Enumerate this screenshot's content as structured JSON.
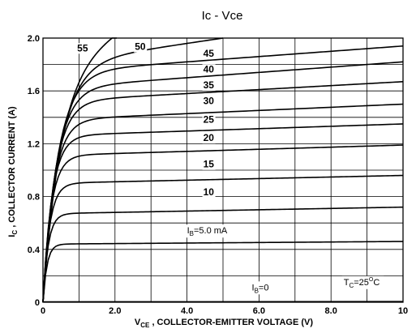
{
  "chart_data": {
    "type": "line",
    "title": "Ic - Vce",
    "xlabel": {
      "sym": "V",
      "sub": "CE",
      "text": " , COLLECTOR-EMITTER VOLTAGE (V)"
    },
    "ylabel": {
      "sym": "I",
      "sub": "C",
      "text": " , COLLECTOR CURRENT (A)"
    },
    "xlim": [
      0,
      10
    ],
    "ylim": [
      0,
      2.0
    ],
    "x_ticks": [
      {
        "value": 0,
        "label": "0"
      },
      {
        "value": 2,
        "label": "2.0"
      },
      {
        "value": 4,
        "label": "4.0"
      },
      {
        "value": 6,
        "label": "6.0"
      },
      {
        "value": 8,
        "label": "8.0"
      },
      {
        "value": 10,
        "label": "10"
      }
    ],
    "y_ticks": [
      {
        "value": 0,
        "label": "0"
      },
      {
        "value": 0.4,
        "label": "0.4"
      },
      {
        "value": 0.8,
        "label": "0.8"
      },
      {
        "value": 1.2,
        "label": "1.2"
      },
      {
        "value": 1.6,
        "label": "1.6"
      },
      {
        "value": 2.0,
        "label": "2.0"
      }
    ],
    "grid": true,
    "grid_step": {
      "x": 1,
      "y": 0.2
    },
    "series": [
      {
        "name": "5.0",
        "label": "IB=5.0 mA",
        "sat": 0.44,
        "slope": 0.002,
        "k": 9,
        "xmax": 10
      },
      {
        "name": "10",
        "label": "10",
        "sat": 0.67,
        "slope": 0.005,
        "k": 7,
        "xmax": 10
      },
      {
        "name": "15",
        "label": "15",
        "sat": 0.9,
        "slope": 0.006,
        "k": 5.5,
        "xmax": 10
      },
      {
        "name": "20",
        "label": "20",
        "sat": 1.11,
        "slope": 0.008,
        "k": 4.5,
        "xmax": 10
      },
      {
        "name": "25",
        "label": "25",
        "sat": 1.26,
        "slope": 0.009,
        "k": 4,
        "xmax": 10
      },
      {
        "name": "30",
        "label": "30",
        "sat": 1.38,
        "slope": 0.012,
        "k": 3.4,
        "xmax": 10
      },
      {
        "name": "35",
        "label": "35",
        "sat": 1.52,
        "slope": 0.015,
        "k": 3,
        "xmax": 10
      },
      {
        "name": "40",
        "label": "40",
        "sat": 1.62,
        "slope": 0.02,
        "k": 2.7,
        "xmax": 10
      },
      {
        "name": "45",
        "label": "45",
        "sat": 1.74,
        "slope": 0.02,
        "k": 2.4,
        "xmax": 10
      },
      {
        "name": "50",
        "label": "50",
        "sat": 1.8,
        "slope": 0.04,
        "k": 2.1,
        "xmax": 5
      },
      {
        "name": "55",
        "label": "55",
        "sat": 1.75,
        "slope": 0.15,
        "k": 2.0,
        "xmax": 2.05
      }
    ],
    "series_labels": [
      {
        "text": "55",
        "x": 0.95,
        "y": 1.9
      },
      {
        "text": "50",
        "x": 2.55,
        "y": 1.91
      },
      {
        "text": "45",
        "x": 4.45,
        "y": 1.86
      },
      {
        "text": "40",
        "x": 4.45,
        "y": 1.74
      },
      {
        "text": "35",
        "x": 4.45,
        "y": 1.62
      },
      {
        "text": "30",
        "x": 4.45,
        "y": 1.5
      },
      {
        "text": "25",
        "x": 4.45,
        "y": 1.36
      },
      {
        "text": "20",
        "x": 4.45,
        "y": 1.22
      },
      {
        "text": "15",
        "x": 4.45,
        "y": 1.02
      },
      {
        "text": "10",
        "x": 4.45,
        "y": 0.81
      }
    ],
    "annotations": [
      {
        "key": "ib5",
        "sym": "I",
        "sub": "B",
        "text": "=5.0 mA",
        "x": 4.0,
        "y": 0.52
      },
      {
        "key": "ib0",
        "sym": "I",
        "sub": "B",
        "text": "=0",
        "x": 5.8,
        "y": 0.09
      },
      {
        "key": "tc",
        "sym": "T",
        "sub": "C",
        "text": "=25",
        "sup": "O",
        "tail": "C",
        "x": 8.35,
        "y": 0.13
      }
    ],
    "ib0_line": {
      "x": [
        0,
        10
      ],
      "y": [
        0.003,
        0.005
      ]
    }
  }
}
